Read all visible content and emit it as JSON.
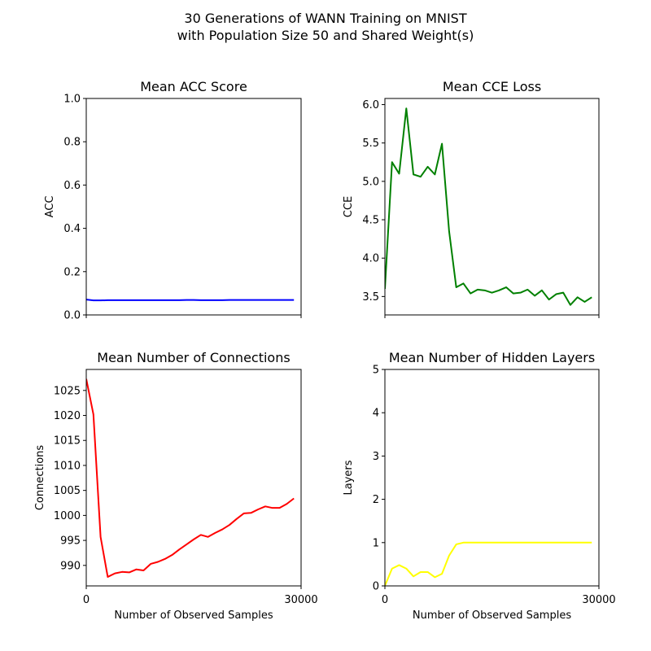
{
  "suptitle": {
    "line1": "30 Generations of WANN Training on MNIST",
    "line2": "with Population Size 50 and Shared Weight(s)"
  },
  "colors": {
    "acc": "#0000ff",
    "cce": "#008000",
    "conn": "#ff0000",
    "layers": "#ffff00"
  },
  "chart_data": [
    {
      "type": "line",
      "title": "Mean ACC Score",
      "xlabel": "",
      "ylabel": "ACC",
      "xlim": [
        0,
        30000
      ],
      "ylim": [
        0,
        1
      ],
      "xticks": [],
      "xtick_labels": [],
      "yticks": [
        0,
        0.2,
        0.4,
        0.6,
        0.8,
        1.0
      ],
      "ytick_labels": [
        "0.0",
        "0.2",
        "0.4",
        "0.6",
        "0.8",
        "1.0"
      ],
      "color_key": "acc",
      "x": [
        0,
        1000,
        2000,
        3000,
        4000,
        5000,
        6000,
        7000,
        8000,
        9000,
        10000,
        11000,
        12000,
        13000,
        14000,
        15000,
        16000,
        17000,
        18000,
        19000,
        20000,
        21000,
        22000,
        23000,
        24000,
        25000,
        26000,
        27000,
        28000,
        29000
      ],
      "y": [
        0.071,
        0.067,
        0.067,
        0.068,
        0.068,
        0.068,
        0.068,
        0.068,
        0.068,
        0.068,
        0.068,
        0.068,
        0.068,
        0.068,
        0.069,
        0.069,
        0.068,
        0.068,
        0.068,
        0.068,
        0.069,
        0.069,
        0.069,
        0.069,
        0.069,
        0.069,
        0.069,
        0.069,
        0.069,
        0.069
      ]
    },
    {
      "type": "line",
      "title": "Mean CCE Loss",
      "xlabel": "",
      "ylabel": "CCE",
      "xlim": [
        0,
        30000
      ],
      "ylim": [
        3.26,
        6.08
      ],
      "xticks": [],
      "xtick_labels": [],
      "yticks": [
        3.5,
        4.0,
        4.5,
        5.0,
        5.5,
        6.0
      ],
      "ytick_labels": [
        "3.5",
        "4.0",
        "4.5",
        "5.0",
        "5.5",
        "6.0"
      ],
      "color_key": "cce",
      "x": [
        0,
        1000,
        2000,
        3000,
        4000,
        5000,
        6000,
        7000,
        8000,
        9000,
        10000,
        11000,
        12000,
        13000,
        14000,
        15000,
        16000,
        17000,
        18000,
        19000,
        20000,
        21000,
        22000,
        23000,
        24000,
        25000,
        26000,
        27000,
        28000,
        29000
      ],
      "y": [
        3.6,
        5.25,
        5.1,
        5.95,
        5.09,
        5.06,
        5.19,
        5.09,
        5.49,
        4.35,
        3.62,
        3.67,
        3.54,
        3.59,
        3.58,
        3.55,
        3.58,
        3.62,
        3.54,
        3.55,
        3.59,
        3.51,
        3.58,
        3.46,
        3.53,
        3.55,
        3.39,
        3.49,
        3.43,
        3.49
      ]
    },
    {
      "type": "line",
      "title": "Mean Number of Connections",
      "xlabel": "Number of Observed Samples",
      "ylabel": "Connections",
      "xlim": [
        0,
        30000
      ],
      "ylim": [
        985.9,
        1029.2
      ],
      "xticks": [
        0,
        30000
      ],
      "xtick_labels": [
        "0",
        "30000"
      ],
      "yticks": [
        990,
        995,
        1000,
        1005,
        1010,
        1015,
        1020,
        1025
      ],
      "ytick_labels": [
        "990",
        "995",
        "1000",
        "1005",
        "1010",
        "1015",
        "1020",
        "1025"
      ],
      "color_key": "conn",
      "x": [
        0,
        1000,
        2000,
        3000,
        4000,
        5000,
        6000,
        7000,
        8000,
        9000,
        10000,
        11000,
        12000,
        13000,
        14000,
        15000,
        16000,
        17000,
        18000,
        19000,
        20000,
        21000,
        22000,
        23000,
        24000,
        25000,
        26000,
        27000,
        28000,
        29000
      ],
      "y": [
        1027.3,
        1020.2,
        995.7,
        987.7,
        988.4,
        988.7,
        988.6,
        989.2,
        989.0,
        990.3,
        990.7,
        991.3,
        992.1,
        993.2,
        994.2,
        995.2,
        996.1,
        995.7,
        996.5,
        997.2,
        998.1,
        999.3,
        1000.4,
        1000.5,
        1001.2,
        1001.8,
        1001.5,
        1001.5,
        1002.3,
        1003.4
      ]
    },
    {
      "type": "line",
      "title": "Mean Number of Hidden Layers",
      "xlabel": "Number of Observed Samples",
      "ylabel": "Layers",
      "xlim": [
        0,
        30000
      ],
      "ylim": [
        0,
        5
      ],
      "xticks": [
        0,
        30000
      ],
      "xtick_labels": [
        "0",
        "30000"
      ],
      "yticks": [
        0,
        1,
        2,
        3,
        4,
        5
      ],
      "ytick_labels": [
        "0",
        "1",
        "2",
        "3",
        "4",
        "5"
      ],
      "color_key": "layers",
      "x": [
        0,
        1000,
        2000,
        3000,
        4000,
        5000,
        6000,
        7000,
        8000,
        9000,
        10000,
        11000,
        12000,
        13000,
        14000,
        15000,
        16000,
        17000,
        18000,
        19000,
        20000,
        21000,
        22000,
        23000,
        24000,
        25000,
        26000,
        27000,
        28000,
        29000
      ],
      "y": [
        0.0,
        0.4,
        0.48,
        0.4,
        0.22,
        0.32,
        0.32,
        0.2,
        0.28,
        0.7,
        0.96,
        1.0,
        1.0,
        1.0,
        1.0,
        1.0,
        1.0,
        1.0,
        1.0,
        1.0,
        1.0,
        1.0,
        1.0,
        1.0,
        1.0,
        1.0,
        1.0,
        1.0,
        1.0,
        1.0
      ]
    }
  ]
}
